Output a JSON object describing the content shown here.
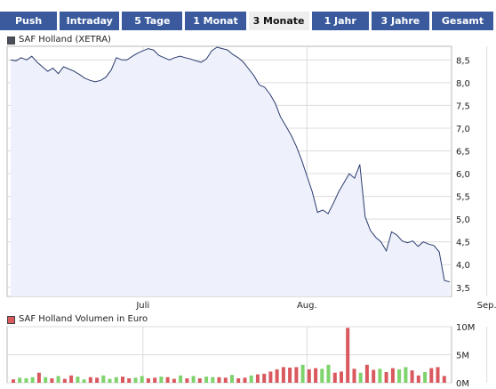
{
  "tabs": [
    {
      "label": "Push",
      "active": false
    },
    {
      "label": "Intraday",
      "active": false
    },
    {
      "label": "5 Tage",
      "active": false
    },
    {
      "label": "1 Monat",
      "active": false
    },
    {
      "label": "3 Monate",
      "active": true
    },
    {
      "label": "1 Jahr",
      "active": false
    },
    {
      "label": "3 Jahre",
      "active": false
    },
    {
      "label": "Gesamt",
      "active": false
    }
  ],
  "colors": {
    "tab": "#3a5a9d",
    "price_line": "#2b3b6e",
    "price_fill": "#eef1fb",
    "legend_price": "#4a4f5c",
    "vol_up": "#7fd36c",
    "vol_down": "#d9595f"
  },
  "chart_data": [
    {
      "type": "area",
      "legend": "SAF Holland (XETRA)",
      "x_ticks": [
        {
          "label": "Juli",
          "index": 25
        },
        {
          "label": "Aug.",
          "index": 56
        },
        {
          "label": "Sep.",
          "index": 90
        }
      ],
      "y_ticks": [
        "8,5",
        "8,0",
        "7,5",
        "7,0",
        "6,5",
        "6,0",
        "5,5",
        "5,0",
        "4,5",
        "4,0",
        "3,5"
      ],
      "y_tick_values": [
        8.5,
        8.0,
        7.5,
        7.0,
        6.5,
        6.0,
        5.5,
        5.0,
        4.5,
        4.0,
        3.5
      ],
      "ylim": [
        3.3,
        8.8
      ],
      "grid": true,
      "values": [
        8.5,
        8.48,
        8.55,
        8.5,
        8.58,
        8.45,
        8.35,
        8.25,
        8.32,
        8.2,
        8.35,
        8.3,
        8.25,
        8.18,
        8.1,
        8.05,
        8.02,
        8.05,
        8.12,
        8.28,
        8.55,
        8.5,
        8.5,
        8.58,
        8.65,
        8.7,
        8.75,
        8.72,
        8.6,
        8.55,
        8.5,
        8.55,
        8.58,
        8.55,
        8.52,
        8.48,
        8.45,
        8.52,
        8.7,
        8.78,
        8.75,
        8.72,
        8.62,
        8.55,
        8.45,
        8.3,
        8.15,
        7.95,
        7.9,
        7.75,
        7.55,
        7.25,
        7.05,
        6.85,
        6.6,
        6.3,
        5.95,
        5.6,
        5.15,
        5.2,
        5.12,
        5.35,
        5.6,
        5.8,
        6.0,
        5.9,
        6.2,
        5.05,
        4.75,
        4.6,
        4.5,
        4.3,
        4.72,
        4.65,
        4.52,
        4.48,
        4.52,
        4.4,
        4.5,
        4.45,
        4.42,
        4.28,
        3.65,
        3.62
      ]
    },
    {
      "type": "bar",
      "legend": "SAF Holland Volumen in Euro",
      "y_ticks": [
        "10M",
        "5M",
        "0M"
      ],
      "y_tick_values": [
        10,
        5,
        0
      ],
      "ylim": [
        0,
        10
      ],
      "unit": "M Euro",
      "values": [
        0.6,
        0.9,
        0.8,
        1.0,
        1.8,
        1.0,
        0.8,
        1.2,
        0.7,
        1.3,
        1.1,
        0.6,
        1.0,
        0.9,
        1.3,
        0.7,
        1.0,
        1.1,
        0.8,
        0.9,
        1.2,
        0.8,
        0.9,
        1.1,
        1.0,
        0.7,
        1.3,
        0.8,
        1.2,
        0.8,
        1.1,
        1.0,
        1.0,
        0.9,
        1.4,
        0.8,
        0.9,
        1.3,
        1.5,
        1.6,
        2.0,
        2.4,
        2.8,
        2.7,
        2.8,
        3.2,
        2.4,
        2.6,
        2.5,
        3.2,
        1.8,
        2.0,
        9.8,
        2.5,
        1.8,
        3.2,
        2.3,
        2.5,
        1.9,
        2.6,
        2.4,
        2.8,
        2.2,
        1.3,
        1.9,
        2.6,
        2.8,
        1.2
      ],
      "up": [
        false,
        true,
        true,
        true,
        false,
        true,
        false,
        true,
        false,
        false,
        true,
        true,
        false,
        false,
        true,
        true,
        true,
        false,
        false,
        true,
        true,
        false,
        false,
        true,
        false,
        false,
        true,
        false,
        true,
        false,
        true,
        true,
        false,
        false,
        true,
        false,
        false,
        true,
        false,
        false,
        false,
        false,
        false,
        false,
        false,
        true,
        false,
        false,
        true,
        true,
        false,
        false,
        false,
        false,
        true,
        false,
        false,
        true,
        false,
        false,
        true,
        true,
        false,
        false,
        true,
        false,
        false,
        false
      ]
    }
  ]
}
